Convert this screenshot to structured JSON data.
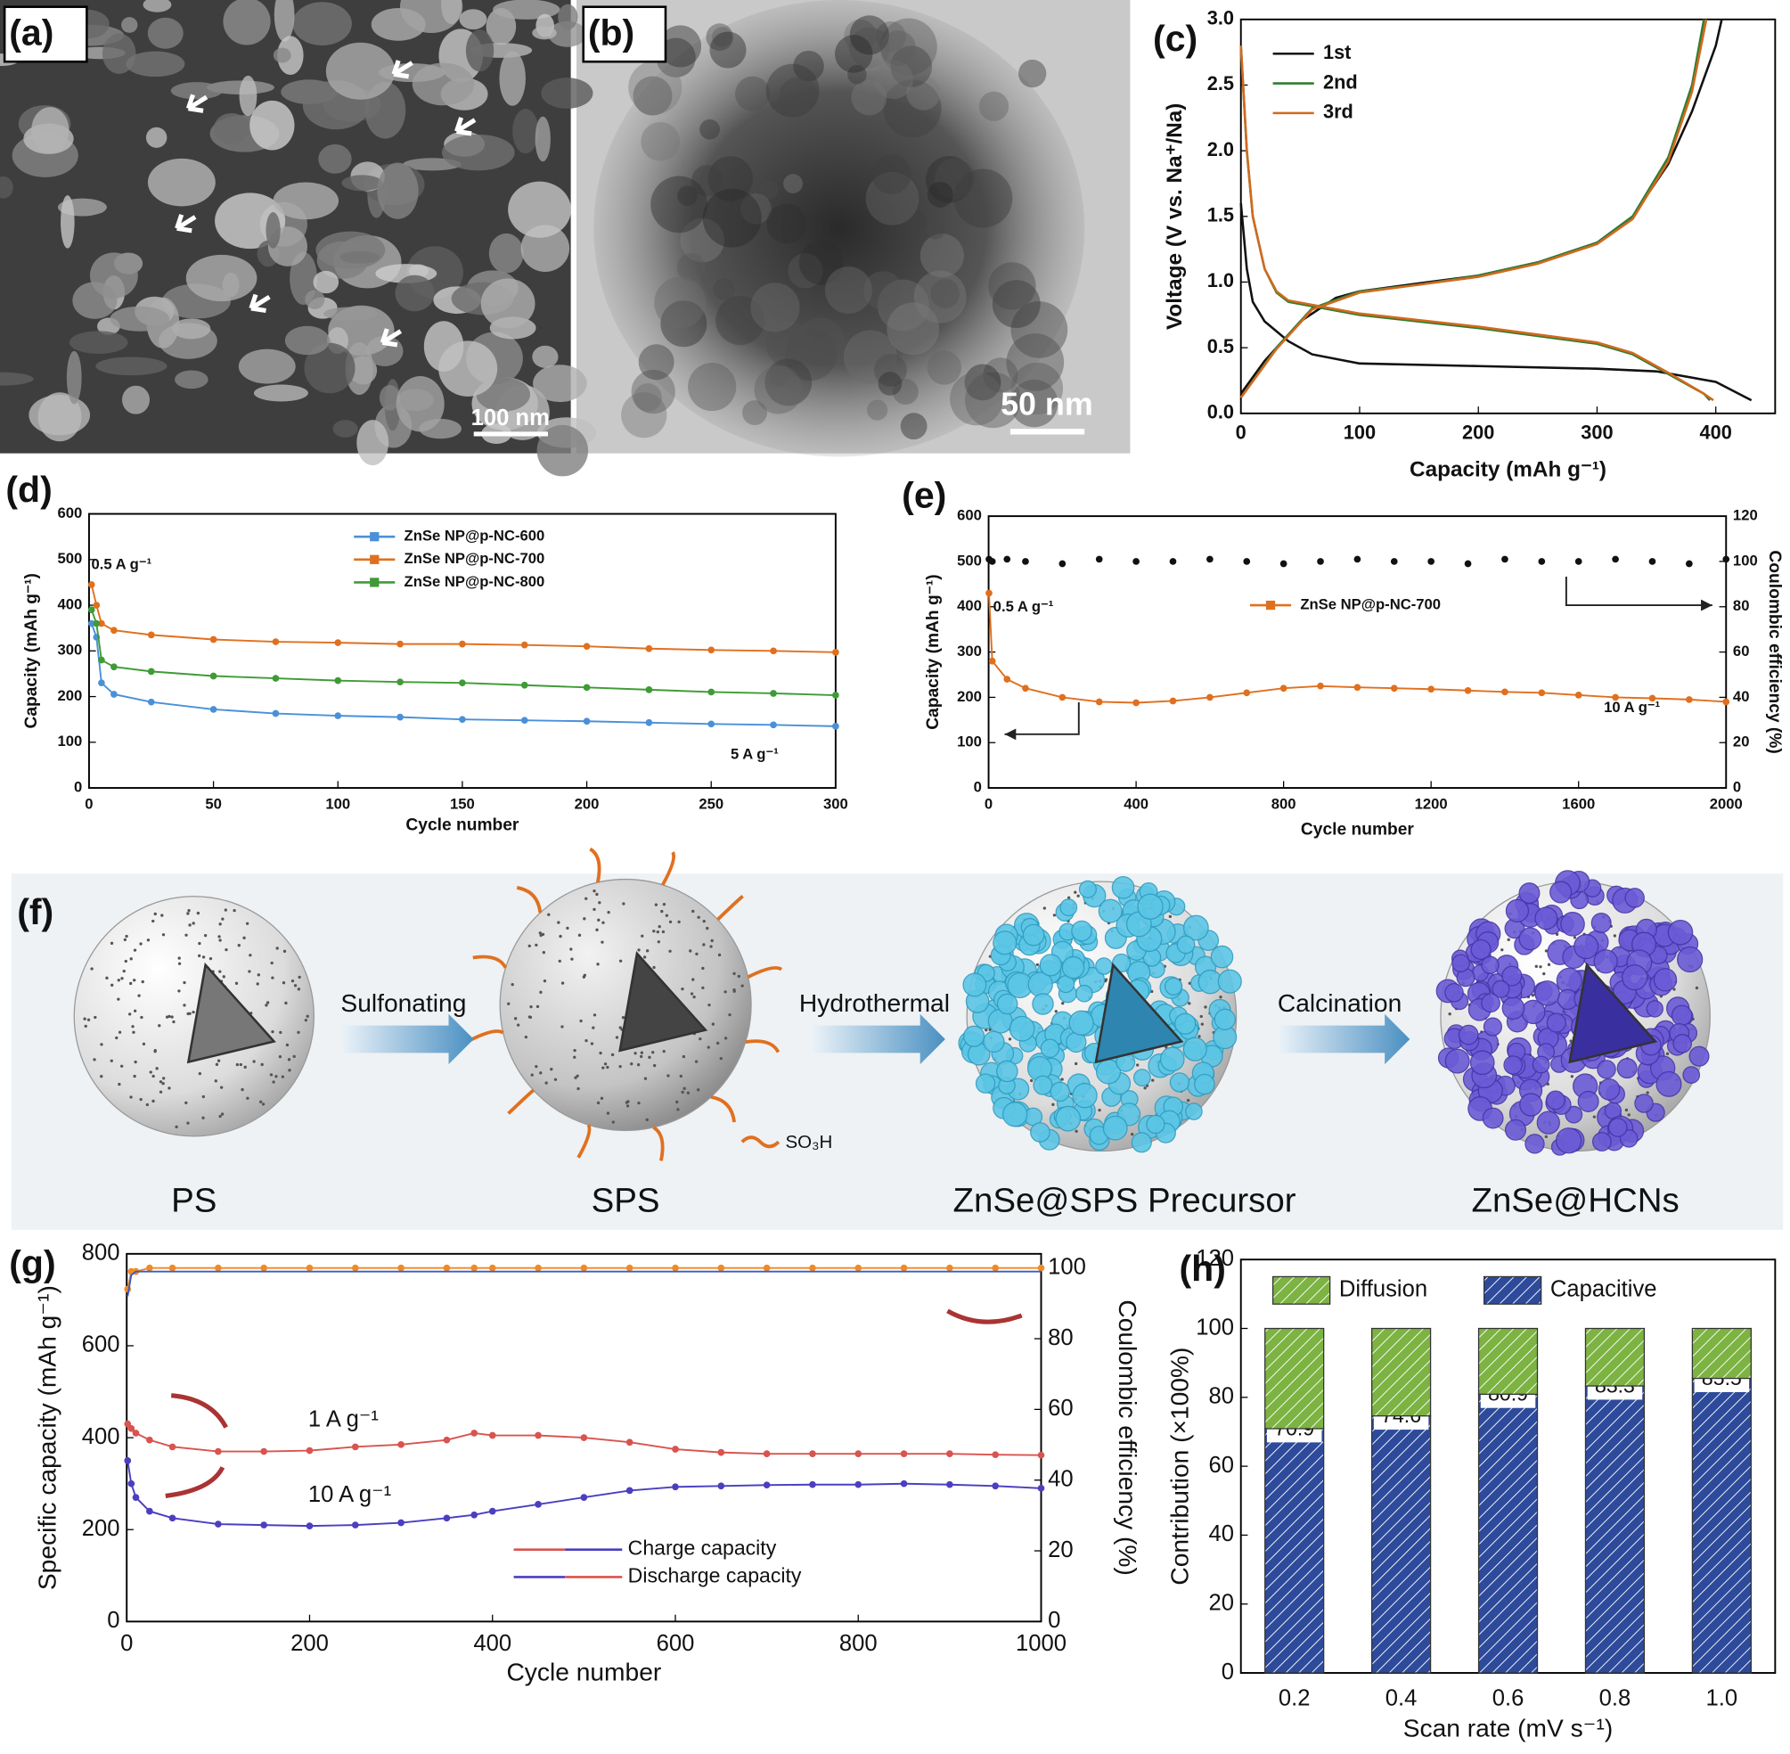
{
  "panels": [
    {
      "label": "(a)",
      "scale_bar": "100 nm"
    },
    {
      "label": "(b)",
      "scale_bar": "50 nm"
    },
    {
      "label": "(c)"
    },
    {
      "label": "(d)"
    },
    {
      "label": "(e)"
    },
    {
      "label": "(f)"
    },
    {
      "label": "(g)"
    },
    {
      "label": "(h)"
    }
  ],
  "schematic": {
    "steps": [
      "Sulfonating",
      "Hydrothermal",
      "Calcination"
    ],
    "stages": [
      "PS",
      "SPS",
      "ZnSe@SPS Precursor",
      "ZnSe@HCNs"
    ],
    "group_label": "SO₃H"
  },
  "chart_data": [
    {
      "type": "line",
      "xlabel": "Capacity (mAh g⁻¹)",
      "ylabel": "Voltage (V vs. Na⁺/Na)",
      "xlim": [
        0,
        450
      ],
      "ylim": [
        0,
        3
      ],
      "xticks": [
        0,
        100,
        200,
        300,
        400
      ],
      "yticks": [
        {
          "value": 0,
          "label": "0.0"
        },
        {
          "value": 0.5,
          "label": "0.5"
        },
        {
          "value": 1,
          "label": "1.0"
        },
        {
          "value": 1.5,
          "label": "1.5"
        },
        {
          "value": 2,
          "label": "2.0"
        },
        {
          "value": 2.5,
          "label": "2.5"
        },
        {
          "value": 3,
          "label": "3.0"
        }
      ],
      "series": [
        {
          "name": "1st",
          "color": "#111111",
          "x": [
            0,
            5,
            10,
            20,
            40,
            60,
            100,
            200,
            300,
            350,
            400,
            430,
            null,
            0,
            20,
            50,
            80,
            100,
            150,
            200,
            250,
            300,
            330,
            360,
            380,
            400,
            405
          ],
          "values": [
            1.6,
            1.1,
            0.85,
            0.7,
            0.55,
            0.45,
            0.38,
            0.36,
            0.34,
            0.32,
            0.24,
            0.1,
            null,
            0.15,
            0.4,
            0.7,
            0.88,
            0.93,
            0.99,
            1.05,
            1.15,
            1.3,
            1.5,
            1.9,
            2.3,
            2.8,
            3.0
          ]
        },
        {
          "name": "2nd",
          "color": "#2e7d32",
          "x": [
            0,
            5,
            10,
            20,
            30,
            40,
            100,
            200,
            300,
            330,
            360,
            390,
            395,
            null,
            0,
            30,
            60,
            100,
            150,
            200,
            250,
            300,
            330,
            360,
            380,
            390
          ],
          "values": [
            2.8,
            2.0,
            1.5,
            1.1,
            0.92,
            0.85,
            0.75,
            0.65,
            0.53,
            0.45,
            0.3,
            0.15,
            0.1,
            null,
            0.12,
            0.5,
            0.8,
            0.93,
            0.98,
            1.05,
            1.15,
            1.3,
            1.5,
            1.95,
            2.5,
            3.0
          ]
        },
        {
          "name": "3rd",
          "color": "#d2691e",
          "x": [
            0,
            5,
            10,
            20,
            30,
            40,
            100,
            200,
            300,
            330,
            360,
            390,
            398,
            null,
            0,
            30,
            60,
            100,
            150,
            200,
            250,
            300,
            330,
            360,
            380,
            392
          ],
          "values": [
            2.8,
            2.0,
            1.5,
            1.1,
            0.93,
            0.86,
            0.76,
            0.66,
            0.54,
            0.46,
            0.31,
            0.15,
            0.1,
            null,
            0.12,
            0.49,
            0.79,
            0.92,
            0.98,
            1.04,
            1.14,
            1.29,
            1.48,
            1.92,
            2.45,
            3.0
          ]
        }
      ]
    },
    {
      "type": "line",
      "xlabel": "Cycle number",
      "ylabel": "Capacity (mAh g⁻¹)",
      "annotations": [
        "0.5 A g⁻¹",
        "5 A g⁻¹"
      ],
      "xlim": [
        0,
        300
      ],
      "ylim": [
        0,
        600
      ],
      "xticks": [
        0,
        50,
        100,
        150,
        200,
        250,
        300
      ],
      "yticks": [
        0,
        100,
        200,
        300,
        400,
        500,
        600
      ],
      "x": [
        1,
        3,
        5,
        10,
        25,
        50,
        75,
        100,
        125,
        150,
        175,
        200,
        225,
        250,
        275,
        300
      ],
      "series": [
        {
          "name": "ZnSe NP@p-NC-600",
          "color": "#4a90d9",
          "marker": true,
          "values": [
            360,
            330,
            230,
            205,
            188,
            172,
            163,
            158,
            155,
            150,
            148,
            146,
            143,
            140,
            138,
            135
          ]
        },
        {
          "name": "ZnSe NP@p-NC-700",
          "color": "#e0701e",
          "marker": true,
          "values": [
            445,
            400,
            360,
            345,
            335,
            325,
            320,
            318,
            315,
            315,
            313,
            310,
            305,
            302,
            300,
            297
          ]
        },
        {
          "name": "ZnSe NP@p-NC-800",
          "color": "#3f9b35",
          "marker": true,
          "values": [
            390,
            360,
            280,
            265,
            255,
            245,
            240,
            235,
            232,
            230,
            225,
            220,
            215,
            210,
            207,
            203
          ]
        }
      ]
    },
    {
      "type": "line",
      "xlabel": "Cycle number",
      "ylabel": "Capacity (mAh g⁻¹)",
      "y2label": "Coulombic efficiency (%)",
      "annotations": [
        "0.5 A g⁻¹",
        "10 A g⁻¹"
      ],
      "xlim": [
        0,
        2000
      ],
      "ylim": [
        0,
        600
      ],
      "y2lim": [
        0,
        120
      ],
      "xticks": [
        0,
        400,
        800,
        1200,
        1600,
        2000
      ],
      "yticks": [
        0,
        100,
        200,
        300,
        400,
        500,
        600
      ],
      "y2ticks": [
        0,
        20,
        40,
        60,
        80,
        100,
        120
      ],
      "x": [
        1,
        10,
        50,
        100,
        200,
        300,
        400,
        500,
        600,
        700,
        800,
        900,
        1000,
        1100,
        1200,
        1300,
        1400,
        1500,
        1600,
        1700,
        1800,
        1900,
        2000
      ],
      "series": [
        {
          "name": "ZnSe NP@p-NC-700",
          "color": "#e0701e",
          "marker": true,
          "values": [
            430,
            280,
            240,
            220,
            200,
            190,
            188,
            192,
            200,
            210,
            220,
            225,
            222,
            220,
            218,
            215,
            212,
            210,
            205,
            200,
            198,
            195,
            190
          ]
        },
        {
          "color": "#111111",
          "axis": "y2",
          "marker": true,
          "line": false,
          "values": [
            101,
            100,
            101,
            100,
            99,
            101,
            100,
            100,
            101,
            100,
            99,
            100,
            101,
            100,
            100,
            99,
            101,
            100,
            100,
            101,
            100,
            99,
            101
          ]
        }
      ]
    },
    {
      "type": "line",
      "xlabel": "Cycle number",
      "ylabel": "Specific capacity (mAh g⁻¹)",
      "y2label": "Coulombic efficiency (%)",
      "legend": [
        "Charge capacity",
        "Discharge capacity"
      ],
      "xlim": [
        0,
        1000
      ],
      "ylim": [
        0,
        800
      ],
      "y2lim": [
        0,
        104
      ],
      "xticks": [
        0,
        200,
        400,
        600,
        800,
        1000
      ],
      "yticks": [
        0,
        200,
        400,
        600,
        800
      ],
      "y2ticks": [
        0,
        20,
        40,
        60,
        80,
        100
      ],
      "x": [
        1,
        5,
        10,
        25,
        50,
        100,
        150,
        200,
        250,
        300,
        350,
        380,
        400,
        450,
        500,
        550,
        600,
        650,
        700,
        750,
        800,
        850,
        900,
        950,
        1000
      ],
      "series": [
        {
          "name": "1 A g⁻¹",
          "color": "#d9534f",
          "marker": true,
          "values": [
            430,
            420,
            410,
            395,
            380,
            370,
            370,
            372,
            380,
            385,
            395,
            410,
            405,
            405,
            400,
            390,
            375,
            368,
            365,
            365,
            365,
            365,
            365,
            363,
            362
          ]
        },
        {
          "name": "10 A g⁻¹",
          "color": "#4b3fc0",
          "marker": true,
          "values": [
            350,
            300,
            270,
            240,
            225,
            212,
            210,
            208,
            210,
            215,
            225,
            232,
            240,
            255,
            270,
            285,
            293,
            295,
            297,
            298,
            298,
            300,
            298,
            295,
            290
          ]
        },
        {
          "color": "#f08a24",
          "axis": "y2",
          "marker": true,
          "values": [
            94,
            99,
            99,
            100,
            100,
            100,
            100,
            100,
            100,
            100,
            100,
            100,
            100,
            100,
            100,
            100,
            100,
            100,
            100,
            100,
            100,
            100,
            100,
            100,
            100
          ]
        },
        {
          "color": "#3a5bc7",
          "axis": "y2",
          "values": [
            92,
            98,
            99,
            99,
            99,
            99,
            99,
            99,
            99,
            99,
            99,
            99,
            99,
            99,
            99,
            99,
            99,
            99,
            99,
            99,
            99,
            99,
            99,
            99,
            99
          ]
        }
      ]
    },
    {
      "type": "stacked_bar",
      "xlabel": "Scan rate (mV s⁻¹)",
      "ylabel": "Contribution (×100%)",
      "categories": [
        "0.2",
        "0.4",
        "0.6",
        "0.8",
        "1.0"
      ],
      "ylim": [
        0,
        120
      ],
      "yticks": [
        0,
        20,
        40,
        60,
        80,
        100,
        120
      ],
      "series": [
        {
          "name": "Capacitive",
          "color": "#2d4a9b",
          "values": [
            70.9,
            74.6,
            80.9,
            83.3,
            85.5
          ],
          "labels": true
        },
        {
          "name": "Diffusion",
          "color": "#7cb342",
          "values": [
            29.1,
            25.4,
            19.1,
            16.7,
            14.5
          ]
        }
      ]
    }
  ]
}
